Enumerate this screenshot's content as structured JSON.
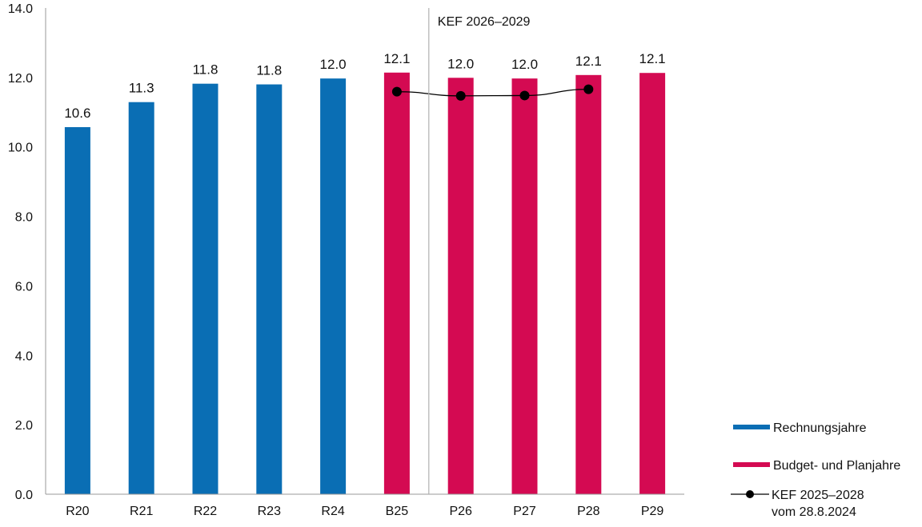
{
  "chart_data": {
    "type": "bar",
    "title": "",
    "xlabel": "",
    "ylabel": "",
    "ylim": [
      0,
      14
    ],
    "yticks": [
      "0.0",
      "2.0",
      "4.0",
      "6.0",
      "8.0",
      "10.0",
      "12.0",
      "14.0"
    ],
    "grid": false,
    "legend_placement": "bottom-right",
    "categories": [
      "R20",
      "R21",
      "R22",
      "R23",
      "R24",
      "B25",
      "P26",
      "P27",
      "P28",
      "P29"
    ],
    "series": [
      {
        "name": "Rechnungsjahre",
        "type": "bar",
        "color": "#0a6eb4",
        "values": [
          10.57,
          11.29,
          11.82,
          11.8,
          11.97,
          null,
          null,
          null,
          null,
          null
        ],
        "labels": [
          "10.6",
          "11.3",
          "11.8",
          "11.8",
          "12.0",
          null,
          null,
          null,
          null,
          null
        ]
      },
      {
        "name": "Budget- und Planjahre",
        "type": "bar",
        "color": "#d40a52",
        "values": [
          null,
          null,
          null,
          null,
          null,
          12.14,
          11.99,
          11.97,
          12.07,
          12.13
        ],
        "labels": [
          null,
          null,
          null,
          null,
          null,
          "12.1",
          "12.0",
          "12.0",
          "12.1",
          "12.1"
        ]
      },
      {
        "name": "KEF 2025–2028 vom 28.8.2024",
        "name_lines": [
          "KEF 2025–2028",
          "vom 28.8.2024"
        ],
        "type": "line",
        "color": "#000000",
        "values": [
          null,
          null,
          null,
          null,
          null,
          11.59,
          11.47,
          11.48,
          11.66,
          null
        ]
      }
    ],
    "annotations": [
      {
        "text": "KEF 2026–2029",
        "divider_between": [
          "B25",
          "P26"
        ]
      }
    ]
  }
}
